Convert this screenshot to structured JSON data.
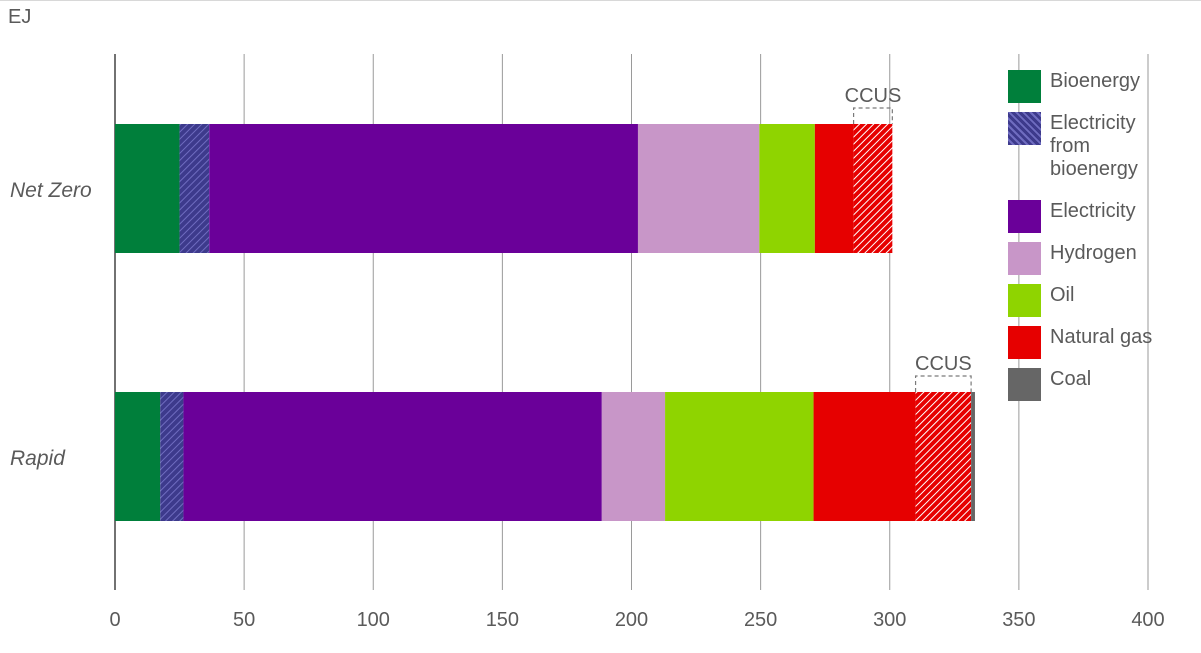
{
  "unit_label": "EJ",
  "colors": {
    "bioenergy": "#007f3b",
    "electricity_from_bioenergy": "#3d3a8c",
    "electricity": "#6a0099",
    "hydrogen": "#c896c8",
    "oil": "#8fd400",
    "natural_gas": "#e60000",
    "coal": "#666666",
    "ccus_hatch": "#e60000",
    "grid": "#9a9a9a",
    "text": "#5a5a5a"
  },
  "legend": [
    {
      "label": "Bioenergy",
      "key": "bioenergy",
      "hatched": false
    },
    {
      "label": "Electricity from bioenergy",
      "key": "electricity_from_bioenergy",
      "hatched": true
    },
    {
      "label": "Electricity",
      "key": "electricity",
      "hatched": false
    },
    {
      "label": "Hydrogen",
      "key": "hydrogen",
      "hatched": false
    },
    {
      "label": "Oil",
      "key": "oil",
      "hatched": false
    },
    {
      "label": "Natural gas",
      "key": "natural_gas",
      "hatched": false
    },
    {
      "label": "Coal",
      "key": "coal",
      "hatched": false
    }
  ],
  "chart_data": {
    "type": "bar",
    "orientation": "horizontal",
    "stacked": true,
    "unit": "EJ",
    "xlim": [
      0,
      400
    ],
    "xticks": [
      0,
      50,
      100,
      150,
      200,
      250,
      300,
      350,
      400
    ],
    "grid": true,
    "legend_position": "right",
    "categories": [
      "Net Zero",
      "Rapid"
    ],
    "series": [
      {
        "name": "Bioenergy",
        "key": "bioenergy",
        "values": [
          25,
          17.5
        ]
      },
      {
        "name": "Electricity from bioenergy",
        "key": "electricity_from_bioenergy",
        "values": [
          11.5,
          9
        ]
      },
      {
        "name": "Electricity",
        "key": "electricity",
        "values": [
          166,
          162
        ]
      },
      {
        "name": "Hydrogen",
        "key": "hydrogen",
        "values": [
          47,
          24.5
        ]
      },
      {
        "name": "Oil",
        "key": "oil",
        "values": [
          21.5,
          57.5
        ]
      },
      {
        "name": "Natural gas",
        "key": "natural_gas",
        "values": [
          15,
          39.5
        ]
      },
      {
        "name": "CCUS",
        "key": "ccus",
        "hatched_over": "natural_gas",
        "values": [
          15,
          21.5
        ]
      },
      {
        "name": "Coal",
        "key": "coal",
        "values": [
          0,
          1.5
        ]
      }
    ],
    "annotations": [
      {
        "text": "CCUS",
        "category": "Net Zero",
        "series": "CCUS"
      },
      {
        "text": "CCUS",
        "category": "Rapid",
        "series": "CCUS"
      }
    ]
  }
}
